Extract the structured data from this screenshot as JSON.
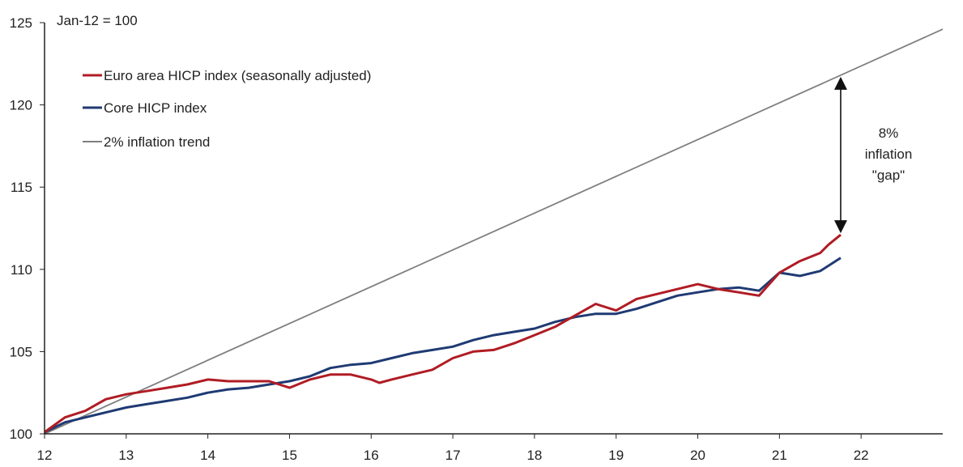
{
  "chart_data": {
    "type": "line",
    "index_note": "Jan-12 = 100",
    "x_ticks": [
      "12",
      "13",
      "14",
      "15",
      "16",
      "17",
      "18",
      "19",
      "20",
      "21",
      "22"
    ],
    "y_ticks": [
      "100",
      "105",
      "110",
      "115",
      "120",
      "125"
    ],
    "xlim": [
      2012,
      2023
    ],
    "ylim": [
      100,
      125
    ],
    "grid": false,
    "legend_position": "top-left",
    "annotation": {
      "lines": [
        "8%",
        "inflation",
        "\"gap\""
      ],
      "at_x": 2021.75
    },
    "colors": {
      "hicp": "#b01c24",
      "core": "#1f3a73",
      "trend": "#7f7f7f",
      "axis": "#222222"
    },
    "series": [
      {
        "name": "Euro area HICP index (seasonally adjusted)",
        "key": "hicp",
        "points": [
          [
            2012.0,
            100.1
          ],
          [
            2012.25,
            101.0
          ],
          [
            2012.5,
            101.4
          ],
          [
            2012.75,
            102.1
          ],
          [
            2013.0,
            102.4
          ],
          [
            2013.25,
            102.6
          ],
          [
            2013.5,
            102.8
          ],
          [
            2013.75,
            103.0
          ],
          [
            2014.0,
            103.3
          ],
          [
            2014.25,
            103.2
          ],
          [
            2014.5,
            103.2
          ],
          [
            2014.75,
            103.2
          ],
          [
            2015.0,
            102.8
          ],
          [
            2015.25,
            103.3
          ],
          [
            2015.5,
            103.6
          ],
          [
            2015.75,
            103.6
          ],
          [
            2016.0,
            103.3
          ],
          [
            2016.1,
            103.1
          ],
          [
            2016.25,
            103.3
          ],
          [
            2016.5,
            103.6
          ],
          [
            2016.75,
            103.9
          ],
          [
            2017.0,
            104.6
          ],
          [
            2017.25,
            105.0
          ],
          [
            2017.5,
            105.1
          ],
          [
            2017.75,
            105.5
          ],
          [
            2018.0,
            106.0
          ],
          [
            2018.25,
            106.5
          ],
          [
            2018.5,
            107.2
          ],
          [
            2018.75,
            107.9
          ],
          [
            2019.0,
            107.5
          ],
          [
            2019.25,
            108.2
          ],
          [
            2019.5,
            108.5
          ],
          [
            2019.75,
            108.8
          ],
          [
            2020.0,
            109.1
          ],
          [
            2020.25,
            108.8
          ],
          [
            2020.5,
            108.6
          ],
          [
            2020.75,
            108.4
          ],
          [
            2021.0,
            109.8
          ],
          [
            2021.25,
            110.5
          ],
          [
            2021.5,
            111.0
          ],
          [
            2021.6,
            111.5
          ],
          [
            2021.75,
            112.1
          ]
        ]
      },
      {
        "name": "Core HICP index",
        "key": "core",
        "points": [
          [
            2012.0,
            100.1
          ],
          [
            2012.25,
            100.7
          ],
          [
            2012.5,
            101.0
          ],
          [
            2012.75,
            101.3
          ],
          [
            2013.0,
            101.6
          ],
          [
            2013.25,
            101.8
          ],
          [
            2013.5,
            102.0
          ],
          [
            2013.75,
            102.2
          ],
          [
            2014.0,
            102.5
          ],
          [
            2014.25,
            102.7
          ],
          [
            2014.5,
            102.8
          ],
          [
            2014.75,
            103.0
          ],
          [
            2015.0,
            103.2
          ],
          [
            2015.25,
            103.5
          ],
          [
            2015.5,
            104.0
          ],
          [
            2015.75,
            104.2
          ],
          [
            2016.0,
            104.3
          ],
          [
            2016.25,
            104.6
          ],
          [
            2016.5,
            104.9
          ],
          [
            2016.75,
            105.1
          ],
          [
            2017.0,
            105.3
          ],
          [
            2017.25,
            105.7
          ],
          [
            2017.5,
            106.0
          ],
          [
            2017.75,
            106.2
          ],
          [
            2018.0,
            106.4
          ],
          [
            2018.25,
            106.8
          ],
          [
            2018.5,
            107.1
          ],
          [
            2018.75,
            107.3
          ],
          [
            2019.0,
            107.3
          ],
          [
            2019.25,
            107.6
          ],
          [
            2019.5,
            108.0
          ],
          [
            2019.75,
            108.4
          ],
          [
            2020.0,
            108.6
          ],
          [
            2020.25,
            108.8
          ],
          [
            2020.5,
            108.9
          ],
          [
            2020.75,
            108.7
          ],
          [
            2021.0,
            109.8
          ],
          [
            2021.25,
            109.6
          ],
          [
            2021.5,
            109.9
          ],
          [
            2021.75,
            110.7
          ]
        ]
      },
      {
        "name": "2% inflation trend",
        "key": "trend",
        "points": [
          [
            2012.0,
            100.0
          ],
          [
            2023.0,
            124.6
          ]
        ]
      }
    ]
  }
}
